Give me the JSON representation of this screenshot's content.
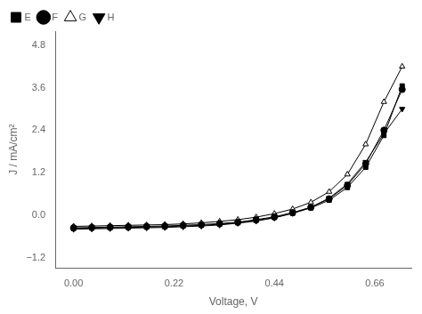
{
  "chart_data": {
    "type": "line",
    "xlabel": "Voltage, V",
    "ylabel": "J / mA/cm²",
    "xlim": [
      -0.04,
      0.74
    ],
    "ylim": [
      -1.5,
      5.2
    ],
    "xticks": [
      {
        "value": 0.0,
        "label": "0.00"
      },
      0.22,
      0.44,
      0.66
    ],
    "yticks": [
      {
        "value": -1.2,
        "label": "−1.2"
      },
      {
        "value": 0.0,
        "label": "0.0"
      },
      1.2,
      2.4,
      3.6,
      4.8
    ],
    "grid": false,
    "legend": "upper left",
    "x": [
      0.0,
      0.04,
      0.08,
      0.12,
      0.16,
      0.2,
      0.24,
      0.28,
      0.32,
      0.36,
      0.4,
      0.44,
      0.48,
      0.52,
      0.56,
      0.6,
      0.64,
      0.68,
      0.72
    ],
    "series": [
      {
        "name": "E",
        "color": "#000000",
        "marker": "square",
        "values": [
          -0.38,
          -0.37,
          -0.36,
          -0.35,
          -0.34,
          -0.33,
          -0.31,
          -0.29,
          -0.26,
          -0.22,
          -0.15,
          -0.07,
          0.05,
          0.2,
          0.42,
          0.78,
          1.35,
          2.25,
          3.65
        ]
      },
      {
        "name": "F",
        "color": "#000000",
        "marker": "circle",
        "values": [
          -0.36,
          -0.35,
          -0.34,
          -0.33,
          -0.32,
          -0.31,
          -0.29,
          -0.27,
          -0.24,
          -0.2,
          -0.13,
          -0.05,
          0.07,
          0.22,
          0.46,
          0.84,
          1.45,
          2.4,
          3.55
        ]
      },
      {
        "name": "G",
        "color": "#000000",
        "marker": "open-triangle-up",
        "values": [
          -0.32,
          -0.31,
          -0.3,
          -0.29,
          -0.28,
          -0.27,
          -0.25,
          -0.22,
          -0.18,
          -0.13,
          -0.06,
          0.04,
          0.17,
          0.36,
          0.66,
          1.15,
          2.0,
          3.2,
          4.2
        ]
      },
      {
        "name": "H",
        "color": "#000000",
        "marker": "triangle-down",
        "values": [
          -0.4,
          -0.39,
          -0.38,
          -0.37,
          -0.36,
          -0.35,
          -0.33,
          -0.31,
          -0.28,
          -0.23,
          -0.17,
          -0.08,
          0.05,
          0.22,
          0.48,
          0.88,
          1.5,
          2.3,
          3.0
        ]
      }
    ]
  }
}
